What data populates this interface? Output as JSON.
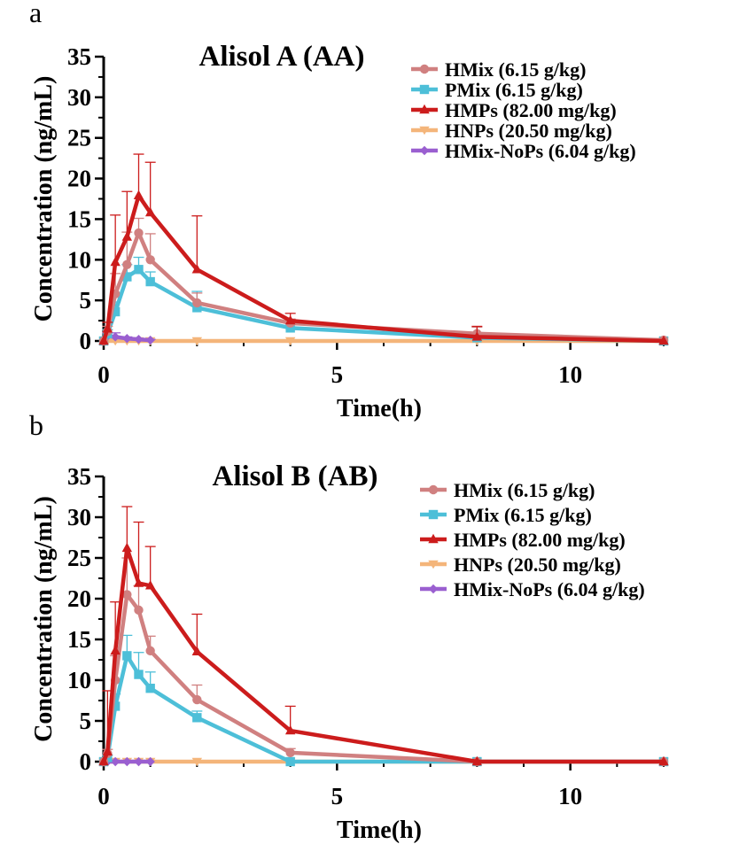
{
  "figure": {
    "panel_a_label": "a",
    "panel_b_label": "b"
  },
  "chart_data": [
    {
      "type": "line",
      "title": "Alisol A (AA)",
      "xlabel": "Time(h)",
      "ylabel": "Concentration (ng/mL)",
      "xlim": [
        0,
        12
      ],
      "ylim": [
        0,
        35
      ],
      "xticks": [
        0,
        5,
        10
      ],
      "yticks": [
        0,
        5,
        10,
        15,
        20,
        25,
        30,
        35
      ],
      "legend_position": "top-right",
      "series": [
        {
          "name": "HMix (6.15 g/kg)",
          "color": "#d08080",
          "marker": "circle",
          "x": [
            0,
            0.083,
            0.25,
            0.5,
            0.75,
            1,
            2,
            4,
            8,
            12
          ],
          "y": [
            0,
            1.2,
            5.8,
            9.4,
            13.3,
            10.0,
            4.7,
            2.2,
            0.9,
            0.1
          ],
          "err": [
            0,
            0.6,
            2.5,
            4.0,
            1.8,
            3.2,
            1.2,
            0.5,
            0.8,
            0
          ]
        },
        {
          "name": "PMix (6.15 g/kg)",
          "color": "#4dbfd8",
          "marker": "square",
          "x": [
            0,
            0.083,
            0.25,
            0.5,
            0.75,
            1,
            2,
            4,
            8,
            12
          ],
          "y": [
            0,
            0.9,
            3.6,
            7.9,
            8.8,
            7.3,
            4.1,
            1.6,
            0.4,
            0.0
          ],
          "err": [
            0,
            0.5,
            1.2,
            1.5,
            1.5,
            1.2,
            2.0,
            0.5,
            0.3,
            0
          ]
        },
        {
          "name": "HMPs (82.00 mg/kg)",
          "color": "#cc1c1c",
          "marker": "triangle",
          "x": [
            0,
            0.083,
            0.25,
            0.5,
            0.75,
            1,
            2,
            4,
            8,
            12
          ],
          "y": [
            0,
            1.5,
            9.7,
            12.8,
            17.9,
            15.8,
            8.8,
            2.5,
            0.5,
            0.0
          ],
          "err": [
            0,
            0.8,
            5.8,
            5.6,
            5.1,
            6.2,
            6.6,
            0.9,
            1.3,
            0
          ]
        },
        {
          "name": "HNPs (20.50 mg/kg)",
          "color": "#f4b57a",
          "marker": "triangle-down",
          "x": [
            0,
            0.083,
            0.25,
            0.5,
            0.75,
            1,
            2,
            4,
            8,
            12
          ],
          "y": [
            0,
            0,
            0,
            0,
            0,
            0,
            0,
            0,
            0,
            0
          ],
          "err": [
            0,
            0,
            0,
            0,
            0,
            0,
            0,
            0,
            0,
            0
          ]
        },
        {
          "name": "HMix-NoPs (6.04 g/kg)",
          "color": "#9a5fd0",
          "marker": "diamond",
          "x": [
            0,
            0.083,
            0.25,
            0.5,
            0.75,
            1
          ],
          "y": [
            0,
            0.6,
            0.5,
            0.3,
            0.2,
            0.1
          ],
          "err": [
            0,
            0.4,
            0.5,
            0.2,
            0.1,
            0.1
          ]
        }
      ]
    },
    {
      "type": "line",
      "title": "Alisol B (AB)",
      "xlabel": "Time(h)",
      "ylabel": "Concentration (ng/mL)",
      "xlim": [
        0,
        12
      ],
      "ylim": [
        0,
        35
      ],
      "xticks": [
        0,
        5,
        10
      ],
      "yticks": [
        0,
        5,
        10,
        15,
        20,
        25,
        30,
        35
      ],
      "legend_position": "top-right",
      "series": [
        {
          "name": "HMix (6.15 g/kg)",
          "color": "#d08080",
          "marker": "circle",
          "x": [
            0,
            0.083,
            0.25,
            0.5,
            0.75,
            1,
            2,
            4,
            8,
            12
          ],
          "y": [
            0,
            1.0,
            10.0,
            20.5,
            18.6,
            13.6,
            7.6,
            1.1,
            0.0,
            0.0
          ],
          "err": [
            0,
            0.5,
            3.0,
            4.5,
            3.0,
            1.8,
            1.8,
            0.5,
            0,
            0
          ]
        },
        {
          "name": "PMix (6.15 g/kg)",
          "color": "#4dbfd8",
          "marker": "square",
          "x": [
            0,
            0.083,
            0.25,
            0.5,
            0.75,
            1,
            2,
            4,
            8,
            12
          ],
          "y": [
            0,
            0.5,
            6.8,
            13.0,
            10.7,
            9.0,
            5.4,
            0.0,
            0.0,
            0.0
          ],
          "err": [
            0,
            0.3,
            1.5,
            2.5,
            2.7,
            2.0,
            0.8,
            0,
            0,
            0
          ]
        },
        {
          "name": "HMPs (82.00 mg/kg)",
          "color": "#cc1c1c",
          "marker": "triangle",
          "x": [
            0,
            0.083,
            0.25,
            0.5,
            0.75,
            1,
            2,
            4,
            8,
            12
          ],
          "y": [
            0,
            1.2,
            13.6,
            26.2,
            21.9,
            21.6,
            13.5,
            3.8,
            0.0,
            0.0
          ],
          "err": [
            0,
            7.5,
            6.0,
            5.1,
            7.5,
            4.8,
            4.6,
            3.0,
            0,
            0
          ]
        },
        {
          "name": "HNPs (20.50 mg/kg)",
          "color": "#f4b57a",
          "marker": "triangle-down",
          "x": [
            0,
            0.083,
            0.25,
            0.5,
            0.75,
            1,
            2,
            4,
            8,
            12
          ],
          "y": [
            0,
            0,
            0,
            0,
            0,
            0,
            0,
            0,
            0,
            0
          ],
          "err": [
            0,
            0,
            0,
            0,
            0,
            0,
            0,
            0,
            0,
            0
          ]
        },
        {
          "name": "HMix-NoPs (6.04 g/kg)",
          "color": "#9a5fd0",
          "marker": "diamond",
          "x": [
            0,
            0.083,
            0.25,
            0.5,
            0.75,
            1
          ],
          "y": [
            0,
            0,
            0,
            0,
            0,
            0
          ],
          "err": [
            0,
            0,
            0,
            0,
            0,
            0
          ]
        }
      ]
    }
  ]
}
